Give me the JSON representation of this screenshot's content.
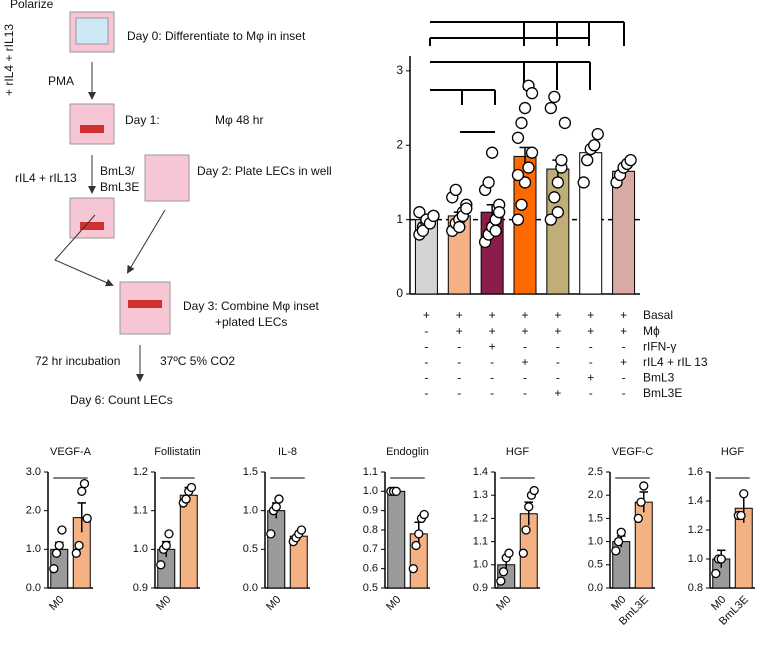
{
  "schematic": {
    "texts": [
      "Polarize",
      "+ rIL4 + rIL13",
      "Day 0: Differentiate to Mφ in inset",
      "PMA",
      "Day 1:",
      "Mφ 48 hr",
      "rIL4 + rIL13",
      "BmL3/",
      "BmL3E",
      "Day 2: Plate LECs in well",
      "Day 3: Combine Mφ inset",
      "+plated LECs",
      "72 hr incubation",
      "37ºC 5% CO2",
      "Day 6: Count LECs"
    ]
  },
  "chart_data": [
    {
      "type": "bar",
      "categories": [
        null,
        null,
        null,
        null,
        null,
        null,
        null
      ],
      "values": [
        1.0,
        1.05,
        1.1,
        1.85,
        1.68,
        1.9,
        1.65
      ],
      "errors": [
        0.05,
        0.05,
        0.1,
        0.12,
        0.12,
        0.06,
        0.05
      ],
      "colors": [
        "#d4d4d4",
        "#f4b183",
        "#8b1c4c",
        "#ff6a00",
        "#bfae78",
        "#ffffff",
        "#d9a9a4"
      ],
      "points": [
        [
          0.8,
          0.9,
          0.95,
          1.0,
          1.05,
          1.1,
          0.85,
          1.0,
          0.95,
          1.05
        ],
        [
          0.85,
          0.95,
          1.0,
          1.1,
          1.2,
          1.3,
          1.4,
          0.9,
          1.05,
          1.15
        ],
        [
          0.7,
          0.8,
          0.9,
          1.0,
          1.2,
          1.4,
          1.5,
          1.9,
          0.85,
          1.1
        ],
        [
          1.0,
          1.2,
          1.5,
          1.7,
          1.9,
          2.1,
          2.3,
          2.5,
          2.8,
          2.7,
          1.6
        ],
        [
          1.0,
          1.3,
          1.5,
          1.7,
          2.3,
          2.5,
          2.65,
          1.1,
          1.8
        ],
        [
          1.5,
          1.8,
          1.95,
          2.0,
          2.15
        ],
        [
          1.5,
          1.6,
          1.7,
          1.75,
          1.8
        ]
      ],
      "ylim": [
        0,
        3.2
      ],
      "yticks": [
        0,
        1,
        2,
        3
      ],
      "refline": 1,
      "conditions": {
        "labels": [
          "Basal",
          "Mϕ",
          "rIFN-γ",
          "rIL4 + rIL 13",
          "BmL3",
          "BmL3E"
        ],
        "rows": [
          [
            "+",
            "+",
            "+",
            "+",
            "+",
            "+",
            "+"
          ],
          [
            "-",
            "+",
            "+",
            "+",
            "+",
            "+",
            "+"
          ],
          [
            "-",
            "-",
            "+",
            "-",
            "-",
            "-",
            "-"
          ],
          [
            "-",
            "-",
            "-",
            "+",
            "-",
            "-",
            "+"
          ],
          [
            "-",
            "-",
            "-",
            "-",
            "-",
            "+",
            "-"
          ],
          [
            "-",
            "-",
            "-",
            "-",
            "+",
            "-",
            "-"
          ]
        ]
      }
    },
    {
      "type": "bar",
      "title": "VEGF-A",
      "categories": [
        "M0",
        null
      ],
      "values": [
        1.0,
        1.82
      ],
      "errors": [
        0.18,
        0.38
      ],
      "colors": [
        "#9a9a9a",
        "#f4b183"
      ],
      "points": [
        [
          0.5,
          0.9,
          1.1,
          1.5
        ],
        [
          0.9,
          1.1,
          2.5,
          2.7,
          1.8
        ]
      ],
      "ylim": [
        0,
        3
      ],
      "yticks": [
        {
          "value": 0,
          "label": "0.0"
        },
        {
          "value": 1,
          "label": "1.0"
        },
        {
          "value": 2,
          "label": "2.0"
        },
        {
          "value": 3,
          "label": "3.0"
        }
      ]
    },
    {
      "type": "bar",
      "title": "Follistatin",
      "categories": [
        "M0",
        null
      ],
      "values": [
        1.0,
        1.14
      ],
      "errors": [
        0.02,
        0.02
      ],
      "colors": [
        "#9a9a9a",
        "#f4b183"
      ],
      "points": [
        [
          0.96,
          1.0,
          1.01,
          1.04
        ],
        [
          1.12,
          1.13,
          1.15,
          1.16
        ]
      ],
      "ylim": [
        0.9,
        1.2
      ],
      "yticks": [
        0.9,
        {
          "value": 1,
          "label": "1.0"
        },
        1.1,
        1.2
      ]
    },
    {
      "type": "bar",
      "title": "IL-8",
      "categories": [
        "M0",
        null
      ],
      "values": [
        1.0,
        0.67
      ],
      "errors": [
        0.1,
        0.05
      ],
      "colors": [
        "#9a9a9a",
        "#f4b183"
      ],
      "points": [
        [
          0.7,
          1.0,
          1.05,
          1.15
        ],
        [
          0.6,
          0.65,
          0.7,
          0.75
        ]
      ],
      "ylim": [
        0,
        1.5
      ],
      "yticks": [
        {
          "value": 0,
          "label": "0.0"
        },
        0.5,
        {
          "value": 1,
          "label": "1.0"
        },
        1.5
      ]
    },
    {
      "type": "bar",
      "title": "Endoglin",
      "categories": [
        "M0",
        null
      ],
      "values": [
        1.0,
        0.78
      ],
      "errors": [
        0,
        0.06
      ],
      "colors": [
        "#9a9a9a",
        "#f4b183"
      ],
      "points": [
        [
          1.0,
          1.0,
          1.0
        ],
        [
          0.6,
          0.72,
          0.78,
          0.86,
          0.88
        ]
      ],
      "ylim": [
        0.5,
        1.1
      ],
      "yticks": [
        0.5,
        0.6,
        0.7,
        0.8,
        0.9,
        {
          "value": 1,
          "label": "1.0"
        },
        1.1
      ]
    },
    {
      "type": "bar",
      "title": "HGF",
      "categories": [
        "M0",
        null
      ],
      "values": [
        1.0,
        1.22
      ],
      "errors": [
        0.03,
        0.05
      ],
      "colors": [
        "#9a9a9a",
        "#f4b183"
      ],
      "points": [
        [
          0.93,
          0.97,
          1.03,
          1.05
        ],
        [
          1.05,
          1.15,
          1.25,
          1.3,
          1.32
        ]
      ],
      "ylim": [
        0.9,
        1.4
      ],
      "yticks": [
        0.9,
        {
          "value": 1,
          "label": "1.0"
        },
        1.1,
        1.2,
        1.3,
        1.4
      ]
    },
    {
      "type": "bar",
      "title": "VEGF-C",
      "categories": [
        "M0",
        "BmL3E"
      ],
      "values": [
        1.0,
        1.85
      ],
      "errors": [
        0.12,
        0.22
      ],
      "colors": [
        "#9a9a9a",
        "#f4b183"
      ],
      "points": [
        [
          0.8,
          1.0,
          1.2
        ],
        [
          1.5,
          1.85,
          2.2
        ]
      ],
      "ylim": [
        0,
        2.5
      ],
      "yticks": [
        {
          "value": 0,
          "label": "0.0"
        },
        0.5,
        {
          "value": 1,
          "label": "1.0"
        },
        1.5,
        {
          "value": 2,
          "label": "2.0"
        },
        2.5
      ]
    },
    {
      "type": "bar",
      "title": "HGF",
      "categories": [
        "M0",
        "BmL3E"
      ],
      "values": [
        1.0,
        1.35
      ],
      "errors": [
        0.06,
        0.1
      ],
      "colors": [
        "#9a9a9a",
        "#f4b183"
      ],
      "points": [
        [
          0.9,
          1.0,
          1.0
        ],
        [
          1.3,
          1.3,
          1.45
        ]
      ],
      "ylim": [
        0.8,
        1.6
      ],
      "yticks": [
        0.8,
        {
          "value": 1,
          "label": "1.0"
        },
        1.2,
        1.4,
        1.6
      ]
    }
  ]
}
